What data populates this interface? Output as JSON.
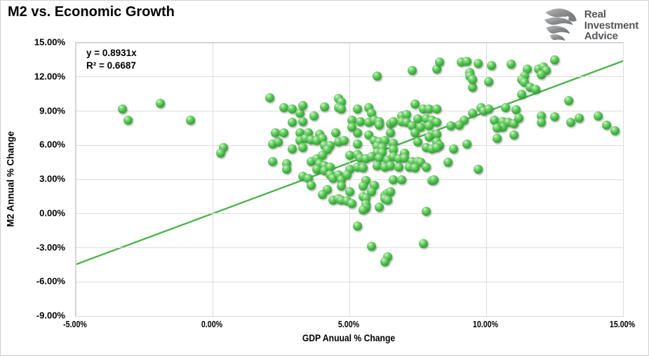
{
  "header": {
    "title": "M2 vs. Economic Growth"
  },
  "logo": {
    "icon": "eagle-icon",
    "lines": [
      "Real",
      "Investment",
      "Advice"
    ],
    "text_color": "#55565a"
  },
  "annotation": {
    "equation": "y = 0.8931x",
    "r_squared": "R² = 0.6687"
  },
  "colors": {
    "marker_green": "#3eb53e",
    "trendline_green": "#4bb24b",
    "gridline_gray": "#dcdcdc",
    "logo_gray": "#808285",
    "text_black": "#000000"
  },
  "chart_data": {
    "type": "scatter",
    "title": "M2 vs. Economic Growth",
    "xlabel": "GDP Anuual % Change",
    "ylabel": "M2 Annual % Change",
    "xlim": [
      -5,
      15
    ],
    "ylim": [
      -9,
      15
    ],
    "x_tick_labels": [
      "-5.00%",
      "0.00%",
      "5.00%",
      "10.00%",
      "15.00%"
    ],
    "x_tick_values": [
      -5,
      0,
      5,
      10,
      15
    ],
    "y_tick_labels": [
      "15.00%",
      "12.00%",
      "9.00%",
      "6.00%",
      "3.00%",
      "0.00%",
      "-3.00%",
      "-6.00%",
      "-9.00%"
    ],
    "y_tick_values": [
      15,
      12,
      9,
      6,
      3,
      0,
      -3,
      -6,
      -9
    ],
    "grid": true,
    "legend": false,
    "units": "percent",
    "trendline": {
      "slope": 0.8931,
      "intercept": 0,
      "equation": "y = 0.8931x",
      "r2": 0.6687
    },
    "points": [
      [
        -3.3,
        9.2
      ],
      [
        -3.1,
        8.2
      ],
      [
        -1.9,
        9.7
      ],
      [
        -0.8,
        8.2
      ],
      [
        0.4,
        5.8
      ],
      [
        0.3,
        5.3
      ],
      [
        2.1,
        10.2
      ],
      [
        2.6,
        9.3
      ],
      [
        2.9,
        9.2
      ],
      [
        3.2,
        8.8
      ],
      [
        3.3,
        9.5
      ],
      [
        3.7,
        8.6
      ],
      [
        4.1,
        9.4
      ],
      [
        4.6,
        10.1
      ],
      [
        4.7,
        9.8
      ],
      [
        4.6,
        9.3
      ],
      [
        4.7,
        9.2
      ],
      [
        2.9,
        8.0
      ],
      [
        3.3,
        8.1
      ],
      [
        2.2,
        6.1
      ],
      [
        2.4,
        6.3
      ],
      [
        2.2,
        4.6
      ],
      [
        2.7,
        4.4
      ],
      [
        2.7,
        3.9
      ],
      [
        2.9,
        5.7
      ],
      [
        2.3,
        7.1
      ],
      [
        2.6,
        7.1
      ],
      [
        3.2,
        7.1
      ],
      [
        3.5,
        7.1
      ],
      [
        3.9,
        7.0
      ],
      [
        4.5,
        7.1
      ],
      [
        5.3,
        7.1
      ],
      [
        5.7,
        6.9
      ],
      [
        6.5,
        7.1
      ],
      [
        3.2,
        6.4
      ],
      [
        3.4,
        6.6
      ],
      [
        3.6,
        6.5
      ],
      [
        3.8,
        6.4
      ],
      [
        4.0,
        6.6
      ],
      [
        4.6,
        6.3
      ],
      [
        4.8,
        6.4
      ],
      [
        5.3,
        6.1
      ],
      [
        5.9,
        6.4
      ],
      [
        6.1,
        6.3
      ],
      [
        6.3,
        6.4
      ],
      [
        6.6,
        6.2
      ],
      [
        3.3,
        5.8
      ],
      [
        4.1,
        6.0
      ],
      [
        4.3,
        6.0
      ],
      [
        4.2,
        5.6
      ],
      [
        6.0,
        5.9
      ],
      [
        6.2,
        5.8
      ],
      [
        6.0,
        5.4
      ],
      [
        6.2,
        5.4
      ],
      [
        6.6,
        5.6
      ],
      [
        3.6,
        4.6
      ],
      [
        3.8,
        4.8
      ],
      [
        4.0,
        5.1
      ],
      [
        5.0,
        5.1
      ],
      [
        5.3,
        5.2
      ],
      [
        5.4,
        4.9
      ],
      [
        5.6,
        4.8
      ],
      [
        5.8,
        5.0
      ],
      [
        6.1,
        4.9
      ],
      [
        6.4,
        4.7
      ],
      [
        6.6,
        5.0
      ],
      [
        6.8,
        4.8
      ],
      [
        3.9,
        4.4
      ],
      [
        4.1,
        4.2
      ],
      [
        3.8,
        3.9
      ],
      [
        4.1,
        3.8
      ],
      [
        4.3,
        4.1
      ],
      [
        5.0,
        3.9
      ],
      [
        5.3,
        4.1
      ],
      [
        5.5,
        4.0
      ],
      [
        6.0,
        4.2
      ],
      [
        6.3,
        4.1
      ],
      [
        6.5,
        4.2
      ],
      [
        6.8,
        4.1
      ],
      [
        3.3,
        3.3
      ],
      [
        3.5,
        3.1
      ],
      [
        4.3,
        3.4
      ],
      [
        4.4,
        3.1
      ],
      [
        4.6,
        3.4
      ],
      [
        4.7,
        3.0
      ],
      [
        4.9,
        3.4
      ],
      [
        5.6,
        2.9
      ],
      [
        6.6,
        3.0
      ],
      [
        6.9,
        3.0
      ],
      [
        3.6,
        2.5
      ],
      [
        4.7,
        2.4
      ],
      [
        5.5,
        2.4
      ],
      [
        5.9,
        2.5
      ],
      [
        4.2,
        2.1
      ],
      [
        4.0,
        1.7
      ],
      [
        5.0,
        1.9
      ],
      [
        5.8,
        1.9
      ],
      [
        4.4,
        1.2
      ],
      [
        4.6,
        1.3
      ],
      [
        4.7,
        1.2
      ],
      [
        4.9,
        1.1
      ],
      [
        5.5,
        1.5
      ],
      [
        5.6,
        1.4
      ],
      [
        5.1,
        0.9
      ],
      [
        5.6,
        0.8
      ],
      [
        5.6,
        0.5
      ],
      [
        5.5,
        0.3
      ],
      [
        6.3,
        1.6
      ],
      [
        6.4,
        1.8
      ],
      [
        6.5,
        1.9
      ],
      [
        6.3,
        1.3
      ],
      [
        6.4,
        1.2
      ],
      [
        6.1,
        0.6
      ],
      [
        7.8,
        0.2
      ],
      [
        8.0,
        2.9
      ],
      [
        5.3,
        -1.1
      ],
      [
        5.8,
        -2.9
      ],
      [
        6.4,
        -3.8
      ],
      [
        6.3,
        -4.2
      ],
      [
        7.7,
        -2.6
      ],
      [
        5.3,
        9.2
      ],
      [
        5.7,
        9.3
      ],
      [
        5.8,
        8.8
      ],
      [
        5.1,
        8.2
      ],
      [
        5.4,
        8.1
      ],
      [
        5.7,
        8.0
      ],
      [
        5.9,
        8.2
      ],
      [
        6.1,
        8.1
      ],
      [
        6.1,
        7.8
      ],
      [
        5.1,
        7.6
      ],
      [
        6.5,
        7.9
      ],
      [
        6.6,
        8.1
      ],
      [
        7.4,
        9.6
      ],
      [
        7.7,
        9.2
      ],
      [
        7.9,
        9.2
      ],
      [
        8.2,
        9.2
      ],
      [
        7.5,
        8.3
      ],
      [
        7.8,
        8.3
      ],
      [
        8.0,
        8.2
      ],
      [
        8.2,
        8.0
      ],
      [
        6.9,
        8.6
      ],
      [
        7.1,
        8.7
      ],
      [
        6.9,
        8.1
      ],
      [
        7.1,
        8.0
      ],
      [
        7.3,
        7.7
      ],
      [
        7.6,
        7.6
      ],
      [
        7.9,
        7.7
      ],
      [
        9.8,
        9.3
      ],
      [
        9.9,
        9.0
      ],
      [
        10.1,
        9.2
      ],
      [
        9.5,
        8.8
      ],
      [
        9.2,
        8.2
      ],
      [
        9.0,
        7.8
      ],
      [
        8.7,
        7.7
      ],
      [
        9.5,
        11.1
      ],
      [
        7.4,
        7.1
      ],
      [
        8.0,
        7.0
      ],
      [
        7.9,
        6.7
      ],
      [
        8.2,
        7.0
      ],
      [
        7.5,
        6.3
      ],
      [
        8.2,
        6.3
      ],
      [
        8.3,
        6.0
      ],
      [
        7.8,
        5.8
      ],
      [
        8.0,
        5.7
      ],
      [
        8.2,
        5.8
      ],
      [
        8.8,
        5.7
      ],
      [
        9.3,
        6.1
      ],
      [
        7.0,
        5.3
      ],
      [
        7.0,
        4.9
      ],
      [
        7.3,
        4.6
      ],
      [
        7.5,
        4.6
      ],
      [
        7.6,
        4.5
      ],
      [
        7.2,
        4.1
      ],
      [
        7.4,
        4.0
      ],
      [
        7.8,
        4.1
      ],
      [
        8.6,
        4.5
      ],
      [
        9.7,
        3.9
      ],
      [
        8.1,
        3.0
      ],
      [
        6.0,
        12.1
      ],
      [
        7.3,
        12.6
      ],
      [
        8.2,
        12.7
      ],
      [
        8.3,
        13.3
      ],
      [
        9.1,
        13.3
      ],
      [
        9.3,
        13.4
      ],
      [
        9.7,
        13.2
      ],
      [
        9.4,
        12.4
      ],
      [
        9.4,
        12.1
      ],
      [
        9.5,
        11.8
      ],
      [
        10.2,
        13.0
      ],
      [
        10.1,
        11.6
      ],
      [
        10.9,
        13.1
      ],
      [
        11.5,
        12.7
      ],
      [
        11.4,
        12.1
      ],
      [
        11.3,
        11.8
      ],
      [
        11.4,
        11.5
      ],
      [
        11.9,
        12.7
      ],
      [
        12.1,
        12.9
      ],
      [
        12.2,
        12.6
      ],
      [
        12.0,
        12.2
      ],
      [
        12.5,
        13.5
      ],
      [
        11.3,
        10.5
      ],
      [
        11.6,
        11.1
      ],
      [
        11.8,
        10.9
      ],
      [
        10.7,
        9.3
      ],
      [
        11.1,
        9.1
      ],
      [
        13.0,
        9.9
      ],
      [
        10.3,
        8.2
      ],
      [
        10.6,
        8.1
      ],
      [
        10.8,
        8.0
      ],
      [
        11.0,
        7.9
      ],
      [
        10.6,
        7.6
      ],
      [
        10.4,
        7.5
      ],
      [
        11.2,
        8.4
      ],
      [
        12.0,
        8.6
      ],
      [
        12.0,
        8.0
      ],
      [
        12.5,
        8.5
      ],
      [
        13.1,
        8.0
      ],
      [
        13.4,
        8.4
      ],
      [
        14.1,
        8.6
      ],
      [
        14.4,
        7.8
      ],
      [
        14.7,
        7.3
      ],
      [
        11.0,
        6.9
      ],
      [
        10.4,
        6.6
      ]
    ]
  }
}
